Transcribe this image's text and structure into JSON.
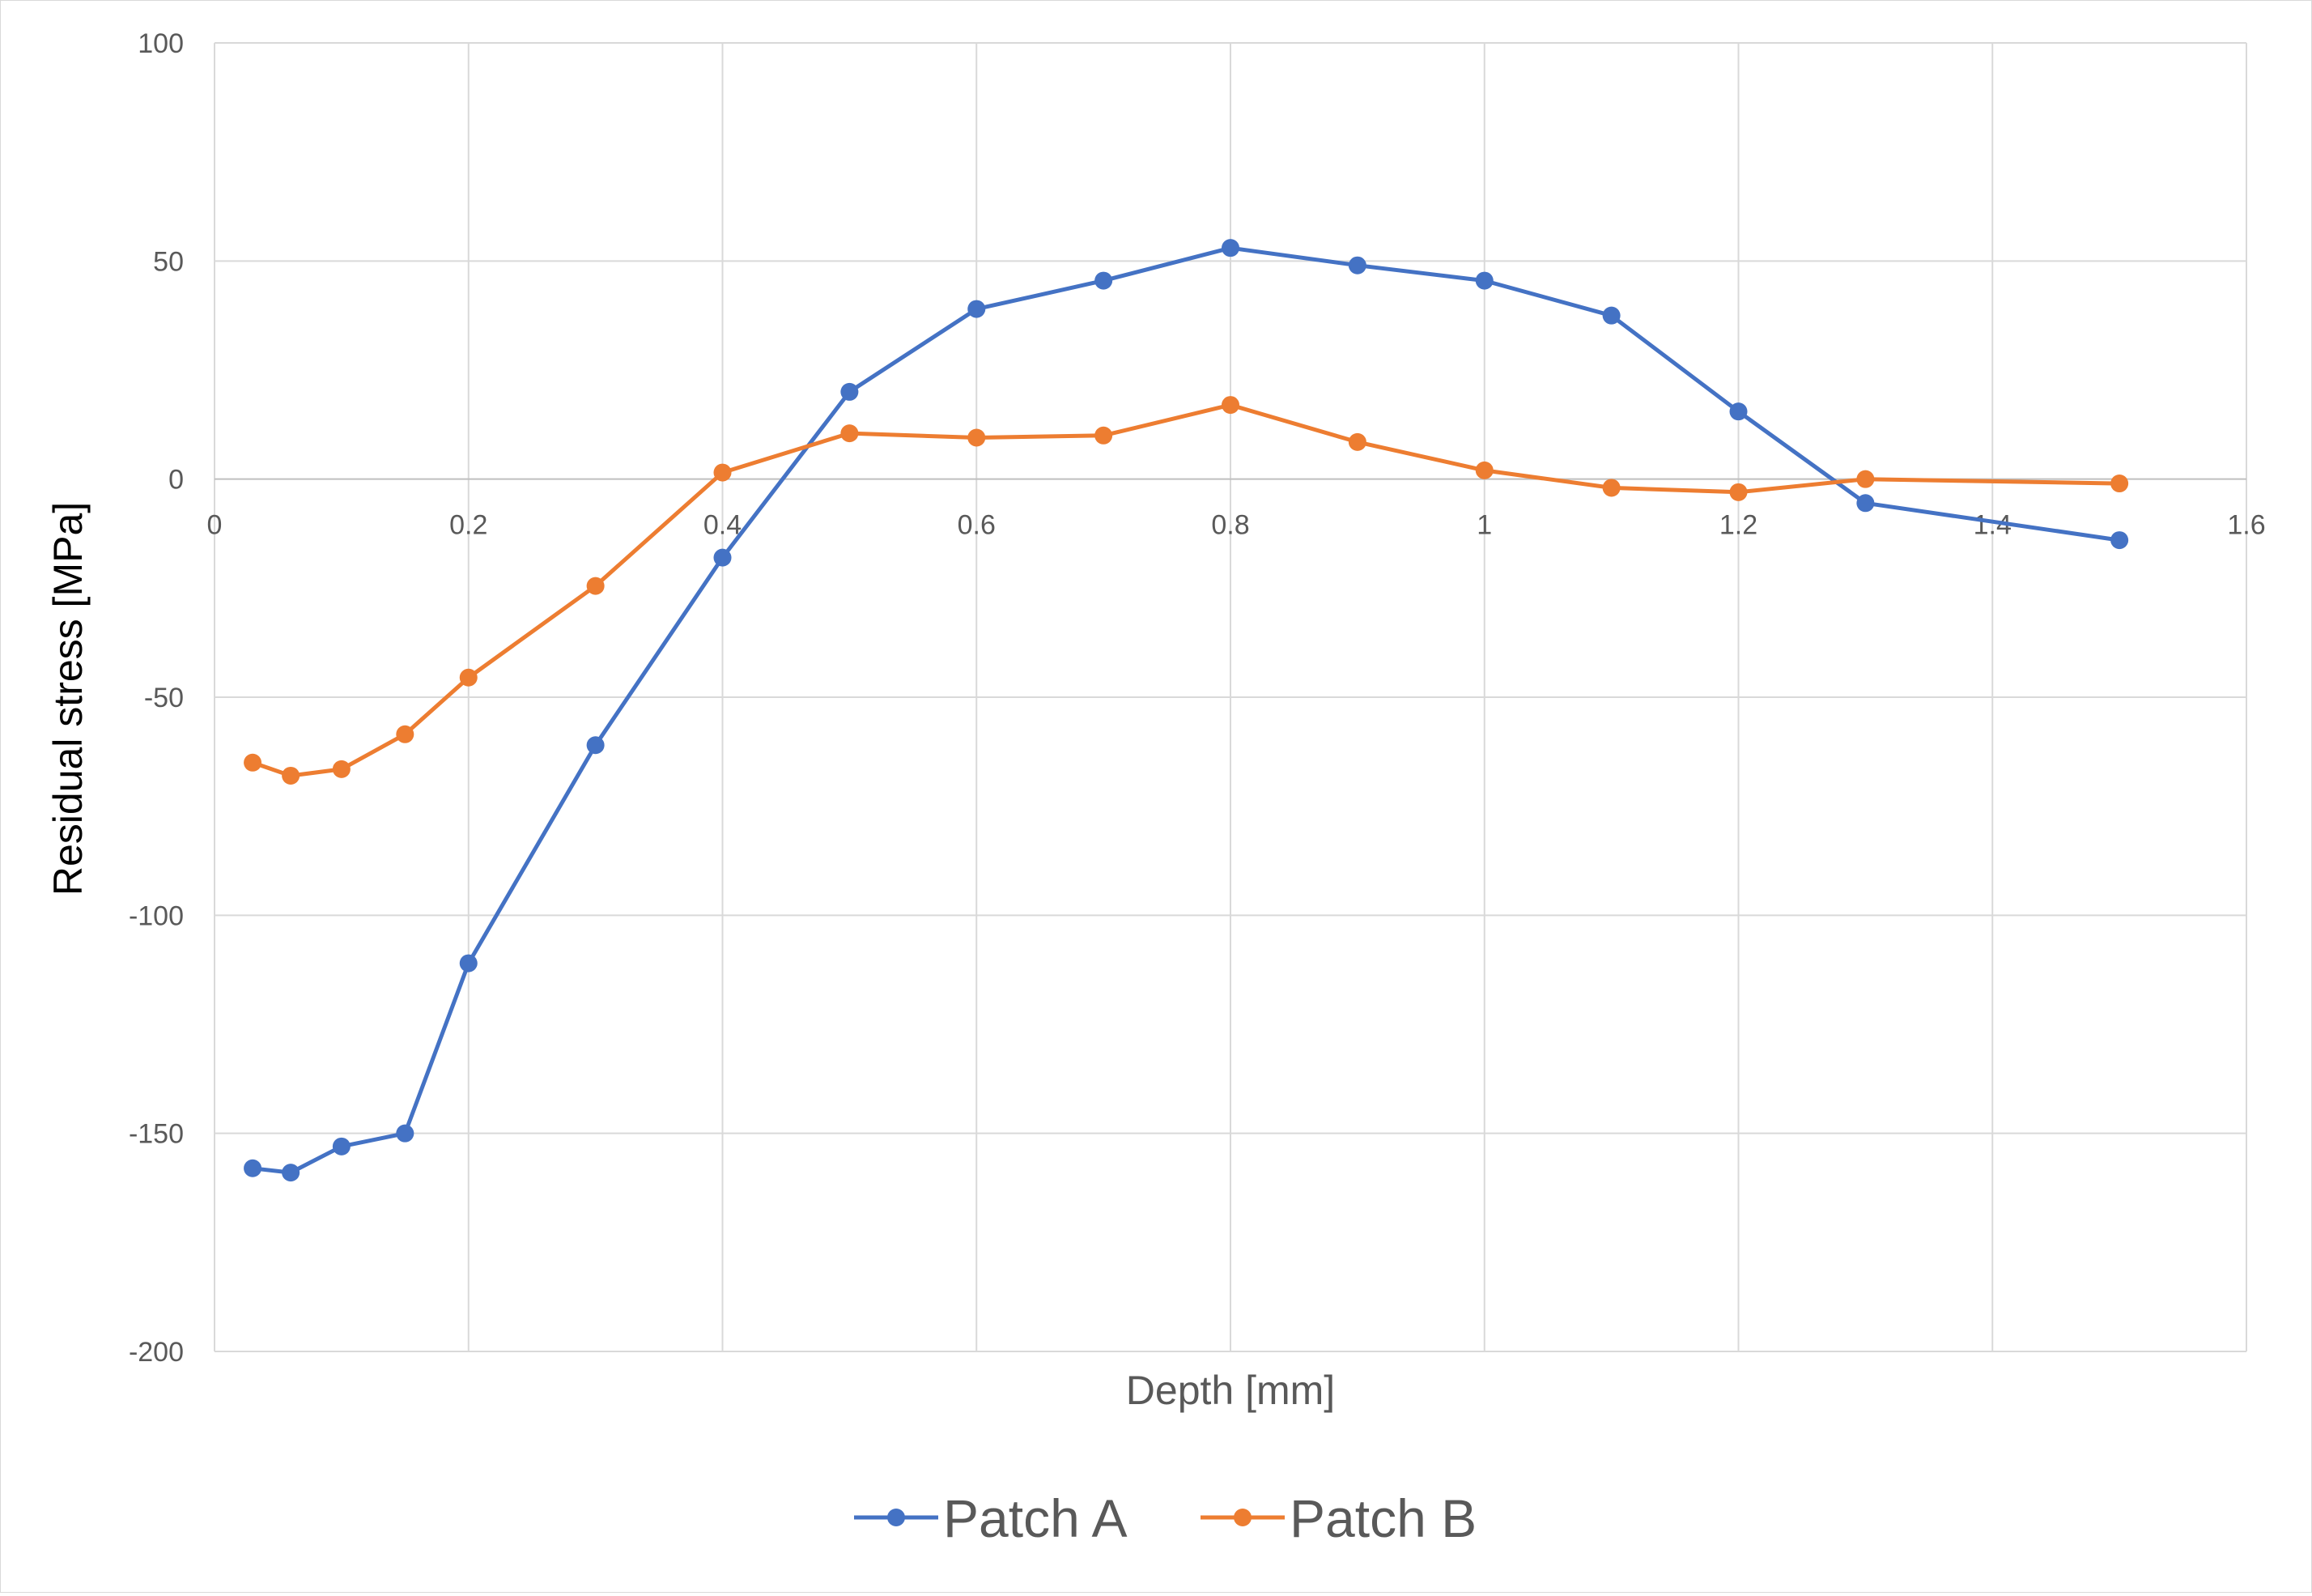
{
  "chart_data": {
    "type": "line",
    "xlabel": "Depth [mm]",
    "ylabel": "Residual stress [MPa]",
    "xlim": [
      0,
      1.6
    ],
    "ylim": [
      -200,
      100
    ],
    "x_ticks": [
      0,
      0.2,
      0.4,
      0.6,
      0.8,
      1,
      1.2,
      1.4,
      1.6
    ],
    "x_tick_labels": [
      "0",
      "0.2",
      "0.4",
      "0.6",
      "0.8",
      "1",
      "1.2",
      "1.4",
      "1.6"
    ],
    "y_ticks": [
      100,
      50,
      0,
      -50,
      -100,
      -150,
      -200
    ],
    "y_tick_labels": [
      "100",
      "50",
      "0",
      "-50",
      "-100",
      "-150",
      "-200"
    ],
    "grid": true,
    "legend_position": "bottom",
    "series": [
      {
        "name": "Patch A",
        "color": "#4472c4",
        "x": [
          0.03,
          0.06,
          0.1,
          0.15,
          0.2,
          0.3,
          0.4,
          0.5,
          0.6,
          0.7,
          0.8,
          0.9,
          1.0,
          1.1,
          1.2,
          1.3,
          1.5
        ],
        "y": [
          -158,
          -159,
          -153,
          -150,
          -111,
          -61,
          -18,
          20,
          39,
          45.5,
          53,
          49,
          45.5,
          37.5,
          15.5,
          -5.5,
          -14
        ]
      },
      {
        "name": "Patch B",
        "color": "#ed7d31",
        "x": [
          0.03,
          0.06,
          0.1,
          0.15,
          0.2,
          0.3,
          0.4,
          0.5,
          0.6,
          0.7,
          0.8,
          0.9,
          1.0,
          1.1,
          1.2,
          1.3,
          1.5
        ],
        "y": [
          -65,
          -68,
          -66.5,
          -58.5,
          -45.5,
          -24.5,
          1.5,
          10.5,
          9.5,
          10,
          17,
          8.5,
          2,
          -2,
          -3,
          0,
          -1
        ]
      }
    ]
  }
}
